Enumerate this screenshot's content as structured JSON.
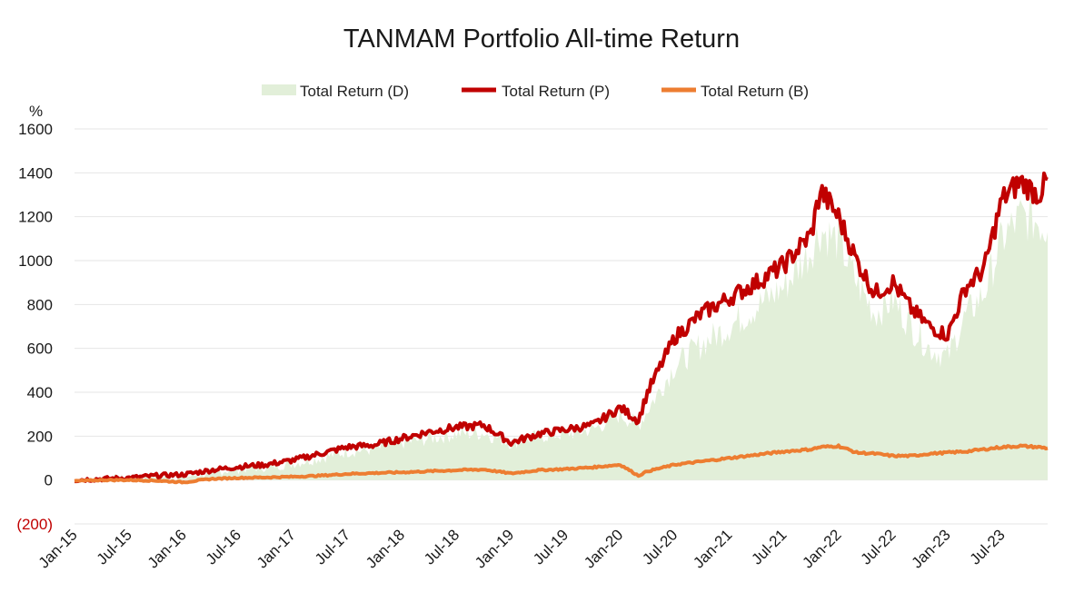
{
  "chart_data": {
    "type": "line",
    "title": "TANMAM Portfolio All-time Return",
    "ylabel": "%",
    "ylim": [
      -200,
      1600
    ],
    "yticks": [
      {
        "value": 1600,
        "label": "1600"
      },
      {
        "value": 1400,
        "label": "1400"
      },
      {
        "value": 1200,
        "label": "1200"
      },
      {
        "value": 1000,
        "label": "1000"
      },
      {
        "value": 800,
        "label": "800"
      },
      {
        "value": 600,
        "label": "600"
      },
      {
        "value": 400,
        "label": "400"
      },
      {
        "value": 200,
        "label": "200"
      },
      {
        "value": 0,
        "label": "0"
      },
      {
        "value": -200,
        "label": "(200)"
      }
    ],
    "xticks": [
      "Jan-15",
      "Jul-15",
      "Jan-16",
      "Jul-16",
      "Jan-17",
      "Jul-17",
      "Jan-18",
      "Jul-18",
      "Jan-19",
      "Jul-19",
      "Jan-20",
      "Jul-20",
      "Jan-21",
      "Jul-21",
      "Jan-22",
      "Jul-22",
      "Jan-23",
      "Jul-23"
    ],
    "grid": true,
    "legend_position": "top",
    "x": [
      "2015-01",
      "2015-04",
      "2015-07",
      "2015-10",
      "2016-01",
      "2016-04",
      "2016-07",
      "2016-10",
      "2017-01",
      "2017-04",
      "2017-07",
      "2017-10",
      "2018-01",
      "2018-04",
      "2018-07",
      "2018-10",
      "2019-01",
      "2019-04",
      "2019-07",
      "2019-10",
      "2020-01",
      "2020-03",
      "2020-04",
      "2020-07",
      "2020-10",
      "2021-01",
      "2021-04",
      "2021-07",
      "2021-10",
      "2021-11",
      "2022-01",
      "2022-03",
      "2022-05",
      "2022-07",
      "2022-09",
      "2022-11",
      "2023-01",
      "2023-03",
      "2023-05",
      "2023-07",
      "2023-09",
      "2023-11",
      "2023-12"
    ],
    "series": [
      {
        "name": "Total Return (D)",
        "style": "area",
        "color": "#e2efd9",
        "values": [
          0,
          5,
          10,
          15,
          12,
          35,
          50,
          60,
          75,
          100,
          130,
          140,
          170,
          190,
          210,
          215,
          170,
          200,
          210,
          230,
          300,
          250,
          320,
          520,
          620,
          700,
          790,
          880,
          1050,
          1140,
          1090,
          900,
          760,
          820,
          700,
          600,
          560,
          750,
          850,
          1100,
          1200,
          1180,
          1130
        ]
      },
      {
        "name": "Total Return (P)",
        "style": "line",
        "color": "#c00000",
        "values": [
          0,
          5,
          10,
          20,
          25,
          45,
          60,
          70,
          90,
          120,
          150,
          160,
          190,
          220,
          240,
          250,
          170,
          210,
          230,
          250,
          330,
          270,
          400,
          650,
          760,
          830,
          900,
          980,
          1120,
          1320,
          1200,
          1000,
          850,
          900,
          780,
          700,
          660,
          880,
          960,
          1280,
          1360,
          1300,
          1370
        ]
      },
      {
        "name": "Total Return (B)",
        "style": "line",
        "color": "#ed7d31",
        "values": [
          -5,
          0,
          0,
          -3,
          -10,
          5,
          10,
          12,
          15,
          20,
          28,
          32,
          35,
          40,
          45,
          48,
          30,
          45,
          50,
          58,
          70,
          20,
          40,
          70,
          85,
          100,
          115,
          130,
          140,
          150,
          155,
          125,
          120,
          110,
          110,
          120,
          125,
          130,
          140,
          150,
          155,
          150,
          145
        ]
      }
    ]
  }
}
